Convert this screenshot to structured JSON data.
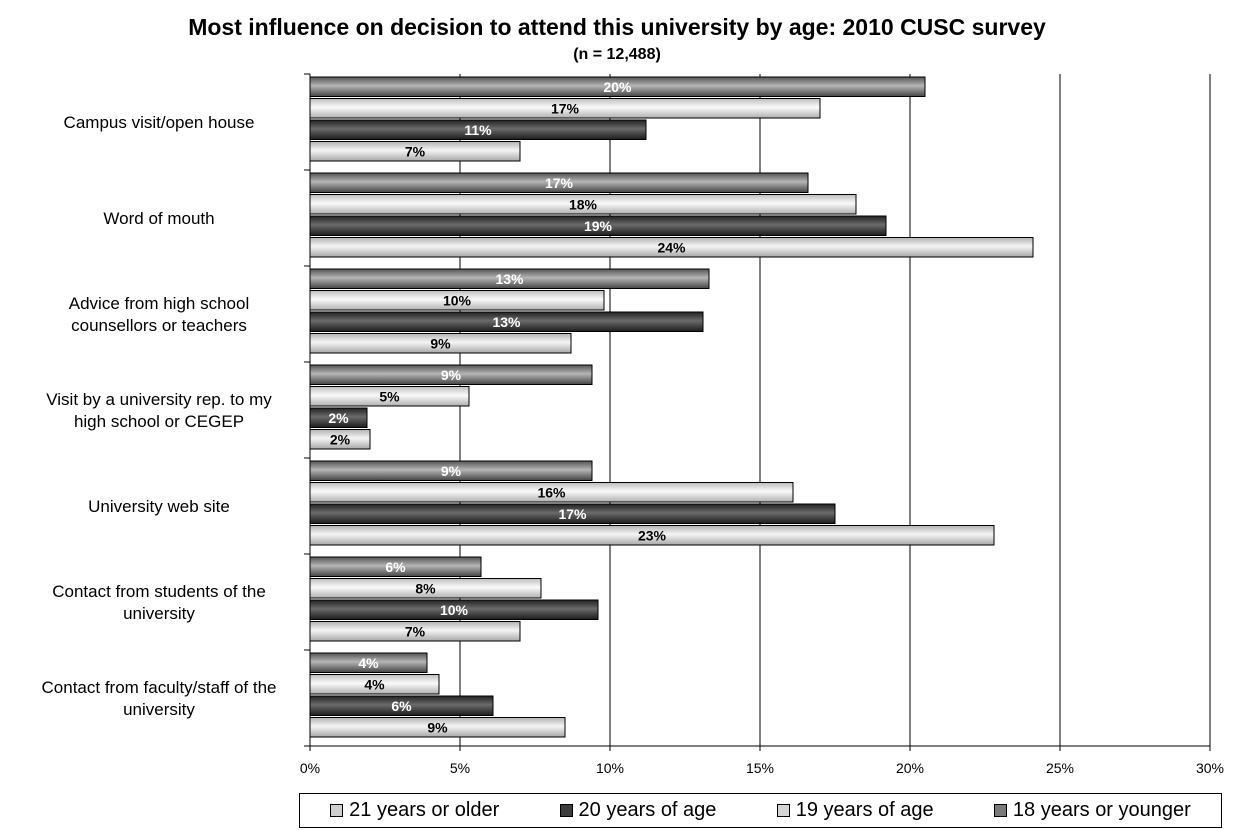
{
  "chart_data": {
    "type": "bar",
    "orientation": "horizontal",
    "title": "Most influence on decision to attend this university by age: 2010 CUSC survey",
    "subtitle": "(n = 12,488)",
    "categories": [
      "Campus visit/open house",
      "Word of mouth",
      "Advice from high school counsellors or teachers",
      "Visit by a university rep. to my high school or CEGEP",
      "University web site",
      "Contact from students of the university",
      "Contact from faculty/staff of the university"
    ],
    "category_lines": [
      [
        "Campus visit/open house"
      ],
      [
        "Word of mouth"
      ],
      [
        "Advice from high school",
        "counsellors or teachers"
      ],
      [
        "Visit by a university rep. to my",
        "high school or CEGEP"
      ],
      [
        "University web site"
      ],
      [
        "Contact from students of the",
        "university"
      ],
      [
        "Contact from faculty/staff of the",
        "university"
      ]
    ],
    "series": [
      {
        "name": "18 years or younger",
        "color": "#7a7a7a",
        "label_color": "#ffffff",
        "values": [
          20.5,
          16.6,
          13.3,
          9.4,
          9.4,
          5.7,
          3.9
        ],
        "labels": [
          "20%",
          "17%",
          "13%",
          "9%",
          "9%",
          "6%",
          "4%"
        ]
      },
      {
        "name": "19 years of age",
        "color": "#d4d4d4",
        "label_color": "#000000",
        "values": [
          17.0,
          18.2,
          9.8,
          5.3,
          16.1,
          7.7,
          4.3
        ],
        "labels": [
          "17%",
          "18%",
          "10%",
          "5%",
          "16%",
          "8%",
          "4%"
        ]
      },
      {
        "name": "20 years of age",
        "color": "#3c3c3c",
        "label_color": "#ffffff",
        "values": [
          11.2,
          19.2,
          13.1,
          1.9,
          17.5,
          9.6,
          6.1
        ],
        "labels": [
          "11%",
          "19%",
          "13%",
          "2%",
          "17%",
          "10%",
          "6%"
        ]
      },
      {
        "name": "21 years or older",
        "color": "#cfcfcf",
        "label_color": "#000000",
        "values": [
          7.0,
          24.1,
          8.7,
          2.0,
          22.8,
          7.0,
          8.5
        ],
        "labels": [
          "7%",
          "24%",
          "9%",
          "2%",
          "23%",
          "7%",
          "9%"
        ]
      }
    ],
    "legend_order": [
      "21 years or older",
      "20 years of age",
      "19 years of age",
      "18 years or younger"
    ],
    "x_ticks": [
      "0%",
      "5%",
      "10%",
      "15%",
      "20%",
      "25%",
      "30%"
    ],
    "xlim": [
      0,
      30
    ],
    "xlabel": "",
    "ylabel": "",
    "grid": true,
    "legend_position": "bottom"
  }
}
